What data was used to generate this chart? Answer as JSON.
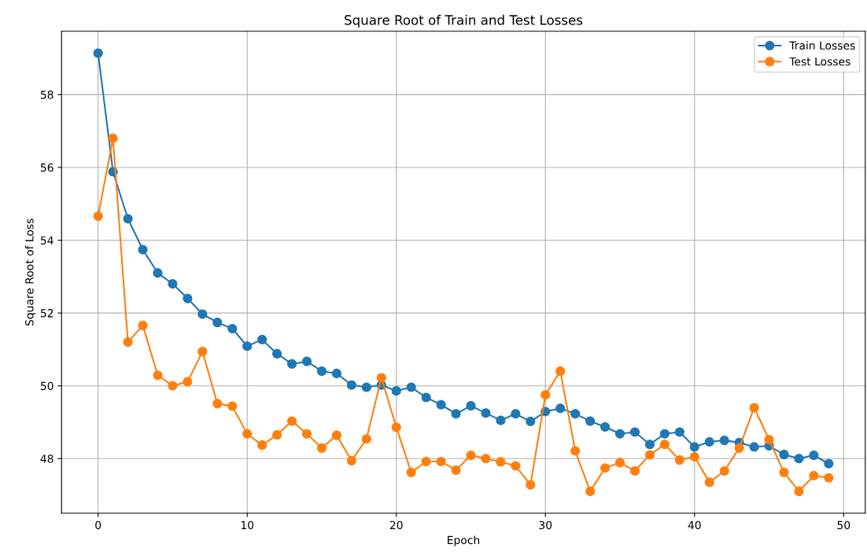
{
  "chart_data": {
    "type": "line",
    "title": "Square Root of Train and Test Losses",
    "xlabel": "Epoch",
    "ylabel": "Square Root of Loss",
    "x": [
      0,
      1,
      2,
      3,
      4,
      5,
      6,
      7,
      8,
      9,
      10,
      11,
      12,
      13,
      14,
      15,
      16,
      17,
      18,
      19,
      20,
      21,
      22,
      23,
      24,
      25,
      26,
      27,
      28,
      29,
      30,
      31,
      32,
      33,
      34,
      35,
      36,
      37,
      38,
      39,
      40,
      41,
      42,
      43,
      44,
      45,
      46,
      47,
      48,
      49
    ],
    "series": [
      {
        "name": "Train Losses",
        "color": "#1f77b4",
        "values": [
          59.14,
          55.88,
          54.59,
          53.74,
          53.1,
          52.8,
          52.4,
          51.97,
          51.74,
          51.57,
          51.09,
          51.27,
          50.88,
          50.6,
          50.67,
          50.4,
          50.34,
          50.02,
          49.96,
          50.02,
          49.86,
          49.96,
          49.68,
          49.48,
          49.23,
          49.45,
          49.25,
          49.05,
          49.23,
          49.02,
          49.29,
          49.38,
          49.23,
          49.03,
          48.87,
          48.68,
          48.73,
          48.39,
          48.68,
          48.73,
          48.32,
          48.46,
          48.5,
          48.44,
          48.32,
          48.35,
          48.11,
          48.0,
          48.09,
          47.86
        ]
      },
      {
        "name": "Test Losses",
        "color": "#ff7f0e",
        "values": [
          54.66,
          56.8,
          51.2,
          51.66,
          50.29,
          50.0,
          50.11,
          50.94,
          49.51,
          49.44,
          48.68,
          48.37,
          48.65,
          49.03,
          48.68,
          48.29,
          48.64,
          47.94,
          48.54,
          50.22,
          48.86,
          47.62,
          47.92,
          47.92,
          47.68,
          48.09,
          48.0,
          47.91,
          47.8,
          47.28,
          49.75,
          50.4,
          48.21,
          47.1,
          47.74,
          47.89,
          47.66,
          48.1,
          48.39,
          47.96,
          48.05,
          47.35,
          47.66,
          48.29,
          49.4,
          48.52,
          47.62,
          47.1,
          47.53,
          47.47
        ]
      }
    ],
    "xlim": [
      -2.45,
      51.45
    ],
    "xticks": [
      0,
      10,
      20,
      30,
      40,
      50
    ],
    "ylim": [
      46.5,
      59.74
    ],
    "yticks": [
      48,
      50,
      52,
      54,
      56,
      58
    ],
    "grid": true,
    "legend": "top right",
    "marker": "circle",
    "line_style": "solid"
  }
}
